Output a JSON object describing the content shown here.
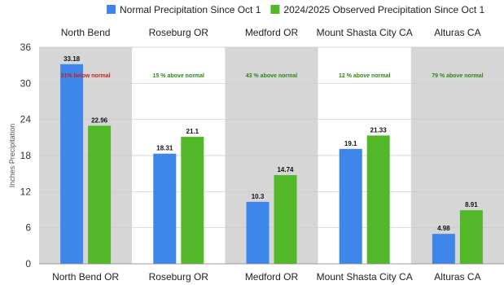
{
  "chart_data": {
    "type": "bar",
    "series": [
      {
        "name": "Normal Precipitation Since Oct 1",
        "color": "#3f86ea",
        "values": [
          33.18,
          18.31,
          10.3,
          19.1,
          4.98
        ]
      },
      {
        "name": "2024/2025 Observed Precipitation Since Oct 1",
        "color": "#52b82a",
        "values": [
          22.96,
          21.1,
          14.74,
          21.33,
          8.91
        ]
      }
    ],
    "top_categories": [
      "North Bend",
      "Roseburg OR",
      "Medford OR",
      "Mount Shasta City CA",
      "Alturas CA"
    ],
    "categories": [
      "North Bend OR",
      "Roseburg OR",
      "Medford OR",
      "Mount Shasta City CA",
      "Alturas CA"
    ],
    "annotations": [
      {
        "text": "31% below normal",
        "color": "#c0221a"
      },
      {
        "text": "15 % above normal",
        "color": "#2c8a12"
      },
      {
        "text": "43 % above normal",
        "color": "#2c8a12"
      },
      {
        "text": "12 % above normal",
        "color": "#2c8a12"
      },
      {
        "text": "79 % above normal",
        "color": "#2c8a12"
      }
    ],
    "band_colors": [
      "#d6d6d6",
      "#ffffff",
      "#d6d6d6",
      "#ffffff",
      "#d6d6d6"
    ],
    "ylabel": "Inches Precipitation",
    "ylim": [
      0,
      36
    ],
    "yticks": [
      0,
      6,
      12,
      18,
      24,
      30,
      36
    ],
    "legend_position": "top",
    "grid": true
  }
}
